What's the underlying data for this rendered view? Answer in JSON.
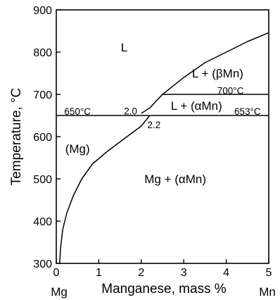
{
  "chart_data": {
    "type": "line",
    "title": "",
    "xlabel": "Manganese, mass %",
    "ylabel": "Temperature, °C",
    "xlim": [
      0,
      5
    ],
    "ylim": [
      300,
      900
    ],
    "x_ticks": [
      "0",
      "1",
      "2",
      "3",
      "4",
      "5"
    ],
    "y_ticks": [
      "300",
      "400",
      "500",
      "600",
      "700",
      "800",
      "900"
    ],
    "x_end_labels": {
      "left": "Mg",
      "right": "Mn"
    },
    "grid": false,
    "series": [
      {
        "kind": "liquidus",
        "points": [
          [
            2.0,
            655
          ],
          [
            2.2,
            668
          ],
          [
            2.5,
            700
          ],
          [
            3.0,
            740
          ],
          [
            3.5,
            775
          ],
          [
            4.0,
            800
          ],
          [
            4.5,
            825
          ],
          [
            5.0,
            846
          ]
        ]
      },
      {
        "kind": "solvus",
        "points": [
          [
            0.08,
            300
          ],
          [
            0.1,
            335
          ],
          [
            0.15,
            380
          ],
          [
            0.25,
            420
          ],
          [
            0.4,
            460
          ],
          [
            0.6,
            500
          ],
          [
            0.85,
            535
          ],
          [
            1.2,
            565
          ],
          [
            1.6,
            595
          ],
          [
            2.0,
            625
          ],
          [
            2.2,
            650
          ]
        ]
      },
      {
        "kind": "eutectic-650",
        "points": [
          [
            0.0,
            650
          ],
          [
            5.0,
            650
          ]
        ]
      },
      {
        "kind": "peritectic-700",
        "points": [
          [
            2.5,
            700
          ],
          [
            5.0,
            700
          ]
        ]
      }
    ],
    "annotations": {
      "regions": [
        {
          "text": "L",
          "x": 1.6,
          "y": 812
        },
        {
          "text": "L + (βMn)",
          "x": 3.8,
          "y": 750
        },
        {
          "text": "L + (αMn)",
          "x": 3.3,
          "y": 673
        },
        {
          "text": "(Mg)",
          "x": 0.5,
          "y": 572
        },
        {
          "text": "Mg + (αMn)",
          "x": 2.8,
          "y": 500
        }
      ],
      "temperatures": [
        {
          "text": "650°C",
          "x": 0.5,
          "y": 660
        },
        {
          "text": "653°C",
          "x": 4.5,
          "y": 660
        },
        {
          "text": "700°C",
          "x": 4.1,
          "y": 709
        }
      ],
      "compositions": [
        {
          "text": "2.0",
          "x": 1.75,
          "y": 661
        },
        {
          "text": "2.2",
          "x": 2.3,
          "y": 628
        }
      ]
    }
  }
}
